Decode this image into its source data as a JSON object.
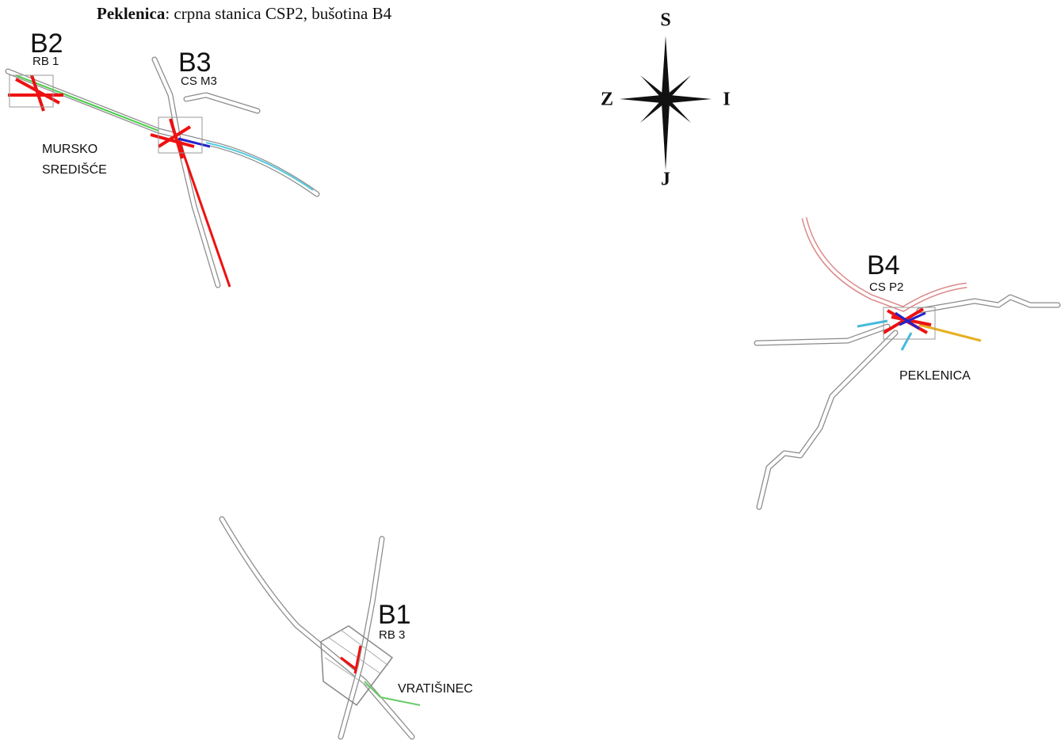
{
  "caption": {
    "bold": "Peklenica",
    "text": ": crpna stanica CSP2, bušotina B4"
  },
  "compass": {
    "north": "S",
    "west": "Z",
    "east": "I",
    "south": "J"
  },
  "sites": [
    {
      "code": "B2",
      "station": "RB 1",
      "place": [
        "MURSKO",
        "SREDIŠĆE"
      ]
    },
    {
      "code": "B3",
      "station": "CS M3"
    },
    {
      "code": "B4",
      "station": "CS P2",
      "place": [
        "PEKLENICA"
      ]
    },
    {
      "code": "B1",
      "station": "RB 3",
      "place": [
        "VRATIŠINEC"
      ]
    }
  ]
}
